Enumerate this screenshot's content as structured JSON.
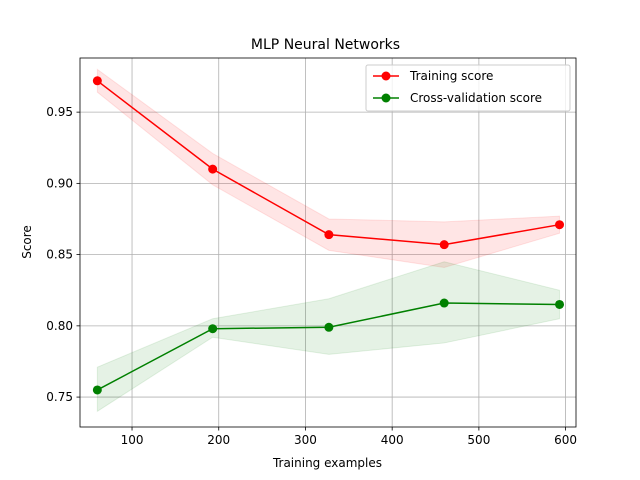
{
  "chart_data": {
    "type": "line",
    "title": "MLP Neural Networks",
    "xlabel": "Training examples",
    "ylabel": "Score",
    "xlim": [
      40,
      612
    ],
    "ylim": [
      0.729,
      0.988
    ],
    "xticks": [
      100,
      200,
      300,
      400,
      500,
      600
    ],
    "yticks": [
      0.75,
      0.8,
      0.85,
      0.9,
      0.95
    ],
    "grid": true,
    "legend_position": "top-right",
    "series": [
      {
        "name": "Training score",
        "color": "#ff0000",
        "band_color": "#ff0000",
        "x": [
          60,
          193,
          327,
          460,
          593
        ],
        "y": [
          0.972,
          0.91,
          0.864,
          0.857,
          0.871
        ],
        "band_upper": [
          0.98,
          0.921,
          0.875,
          0.873,
          0.877
        ],
        "band_lower": [
          0.964,
          0.899,
          0.853,
          0.841,
          0.865
        ]
      },
      {
        "name": "Cross-validation score",
        "color": "#008000",
        "band_color": "#008000",
        "x": [
          60,
          193,
          327,
          460,
          593
        ],
        "y": [
          0.755,
          0.798,
          0.799,
          0.816,
          0.815
        ],
        "band_upper": [
          0.771,
          0.805,
          0.819,
          0.845,
          0.825
        ],
        "band_lower": [
          0.74,
          0.792,
          0.78,
          0.788,
          0.805
        ]
      }
    ]
  }
}
